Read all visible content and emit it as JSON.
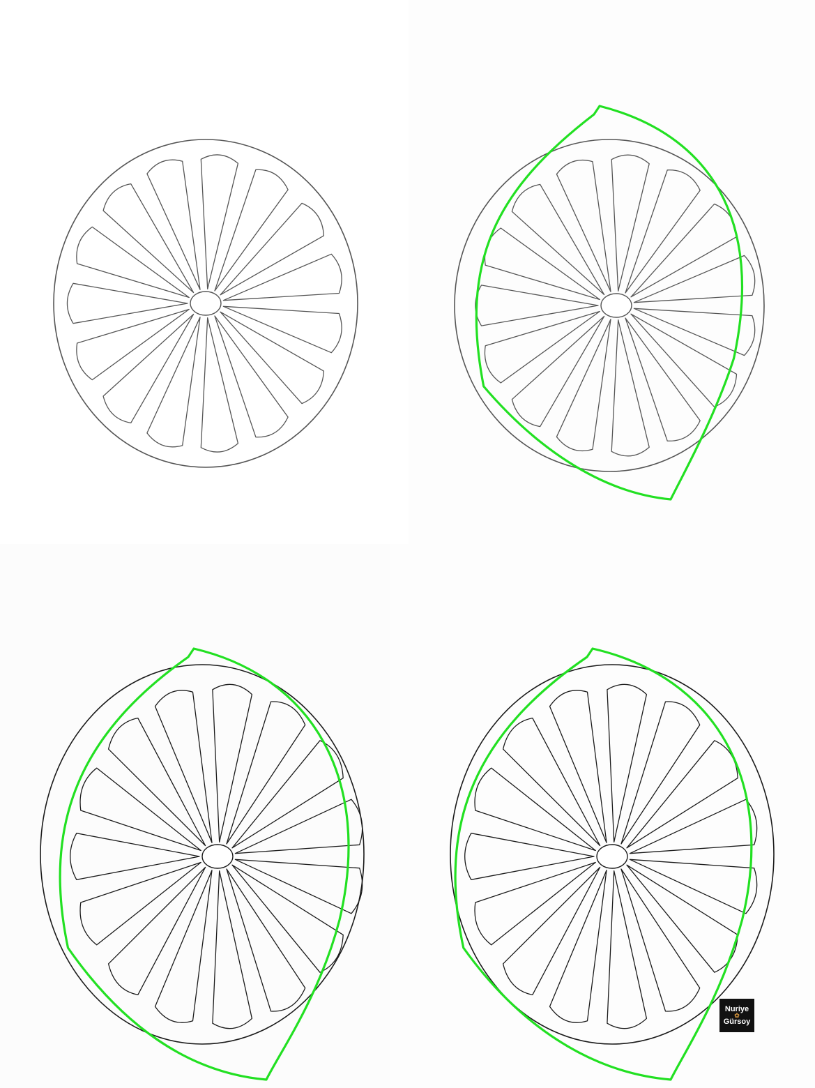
{
  "steps": [
    {
      "id": "step-1",
      "shows_lemon_outline": false,
      "slice_shade": "light"
    },
    {
      "id": "step-2",
      "shows_lemon_outline": true,
      "slice_shade": "light"
    },
    {
      "id": "step-3",
      "shows_lemon_outline": true,
      "slice_shade": "dark"
    },
    {
      "id": "step-4",
      "shows_lemon_outline": true,
      "slice_shade": "dark"
    }
  ],
  "colors": {
    "ink": "#1a1a1a",
    "ink_light": "#555555",
    "lemon_outline": "#22e022"
  },
  "segment_count": 15,
  "logo": {
    "line1": "Nuriye",
    "line2": "Gürsoy"
  }
}
